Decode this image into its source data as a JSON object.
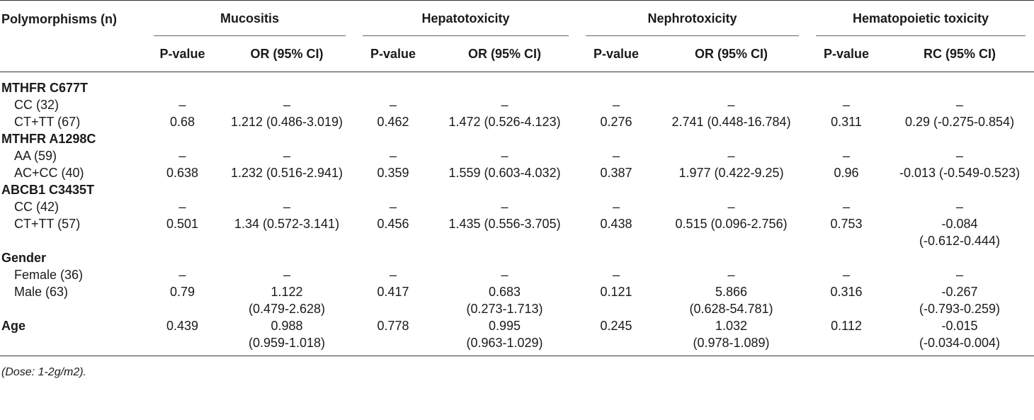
{
  "header": {
    "first_col": "Polymorphisms (n)",
    "groups": [
      "Mucositis",
      "Hepatotoxicity",
      "Nephrotoxicity",
      "Hematopoietic toxicity"
    ],
    "sub": [
      "P-value",
      "OR (95% CI)",
      "P-value",
      "OR (95% CI)",
      "P-value",
      "OR (95% CI)",
      "P-value",
      "RC (95% CI)"
    ]
  },
  "rows": [
    {
      "section": "MTHFR C677T"
    },
    {
      "label": "CC (32)",
      "cells": [
        "–",
        "–",
        "–",
        "–",
        "–",
        "–",
        "–",
        "–"
      ]
    },
    {
      "label": "CT+TT (67)",
      "cells": [
        "0.68",
        "1.212 (0.486-3.019)",
        "0.462",
        "1.472 (0.526-4.123)",
        "0.276",
        "2.741 (0.448-16.784)",
        "0.311",
        "0.29 (-0.275-0.854)"
      ]
    },
    {
      "section": "MTHFR A1298C"
    },
    {
      "label": "AA (59)",
      "cells": [
        "–",
        "–",
        "–",
        "–",
        "–",
        "–",
        "–",
        "–"
      ]
    },
    {
      "label": "AC+CC (40)",
      "cells": [
        "0.638",
        "1.232 (0.516-2.941)",
        "0.359",
        "1.559 (0.603-4.032)",
        "0.387",
        "1.977 (0.422-9.25)",
        "0.96",
        "-0.013 (-0.549-0.523)"
      ]
    },
    {
      "section": "ABCB1 C3435T"
    },
    {
      "label": "CC (42)",
      "cells": [
        "–",
        "–",
        "–",
        "–",
        "–",
        "–",
        "–",
        "–"
      ]
    },
    {
      "label": "CT+TT (57)",
      "cells": [
        "0.501",
        "1.34 (0.572-3.141)",
        "0.456",
        "1.435 (0.556-3.705)",
        "0.438",
        "0.515 (0.096-2.756)",
        "0.753",
        "-0.084\n(-0.612-0.444)"
      ]
    },
    {
      "section": "Gender"
    },
    {
      "label": "Female (36)",
      "cells": [
        "–",
        "–",
        "–",
        "–",
        "–",
        "–",
        "–",
        "–"
      ]
    },
    {
      "label": "Male (63)",
      "cells": [
        "0.79",
        "1.122\n(0.479-2.628)",
        "0.417",
        "0.683\n(0.273-1.713)",
        "0.121",
        "5.866\n(0.628-54.781)",
        "0.316",
        "-0.267\n(-0.793-0.259)"
      ]
    },
    {
      "section": "Age",
      "cells": [
        "0.439",
        "0.988\n(0.959-1.018)",
        "0.778",
        "0.995\n(0.963-1.029)",
        "0.245",
        "1.032\n(0.978-1.089)",
        "0.112",
        "-0.015\n(-0.034-0.004)"
      ]
    }
  ],
  "note": "(Dose: 1-2g/m2)."
}
